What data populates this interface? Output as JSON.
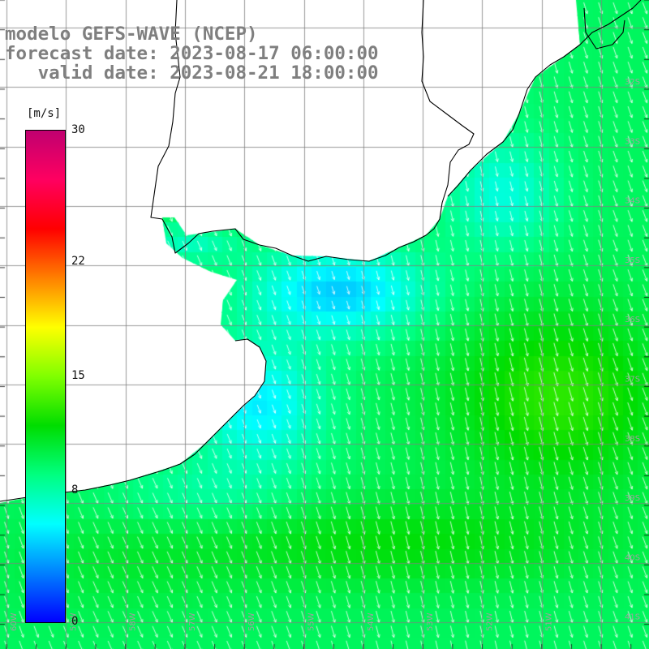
{
  "title": {
    "line1": "modelo GEFS-WAVE (NCEP)",
    "line2": "forecast date: 2023-08-17 06:00:00",
    "line3": "   valid date: 2023-08-21 18:00:00"
  },
  "color_scale": {
    "unit": "[m/s]",
    "ticks": [
      {
        "label": "30",
        "value": 30
      },
      {
        "label": "22",
        "value": 22
      },
      {
        "label": "15",
        "value": 15
      },
      {
        "label": "8",
        "value": 8
      },
      {
        "label": "0",
        "value": 0
      }
    ],
    "stops": [
      "#0000ff",
      "#0080ff",
      "#00ffff",
      "#00ff80",
      "#00dd00",
      "#80ff00",
      "#ffff00",
      "#ff8000",
      "#ff0000",
      "#ff0060",
      "#c00070"
    ]
  },
  "grid_labels": {
    "latitudes": [
      "32S",
      "33S",
      "34S",
      "35S",
      "36S",
      "37S",
      "38S",
      "39S",
      "40S",
      "41S"
    ],
    "longitudes": [
      "60W",
      "59W",
      "58W",
      "57W",
      "56W",
      "55W",
      "54W",
      "53W",
      "52W",
      "51W"
    ]
  },
  "chart_data": {
    "type": "map",
    "field": "wind speed with direction vectors",
    "lat_range": [
      -41.5,
      -31.0
    ],
    "lon_range": [
      -61.0,
      -50.5
    ],
    "value_range": [
      0,
      30
    ],
    "wind_direction": "from north-north-west",
    "speed_regions": [
      {
        "area": "inner estuary",
        "approx_speed": 4
      },
      {
        "area": "coastal shelf",
        "approx_speed": 6
      },
      {
        "area": "open ocean east",
        "approx_speed": 10
      },
      {
        "area": "offshore maximum near 37.5S 52W",
        "approx_speed": 13
      },
      {
        "area": "southern band near 40S",
        "approx_speed": 11
      }
    ]
  }
}
